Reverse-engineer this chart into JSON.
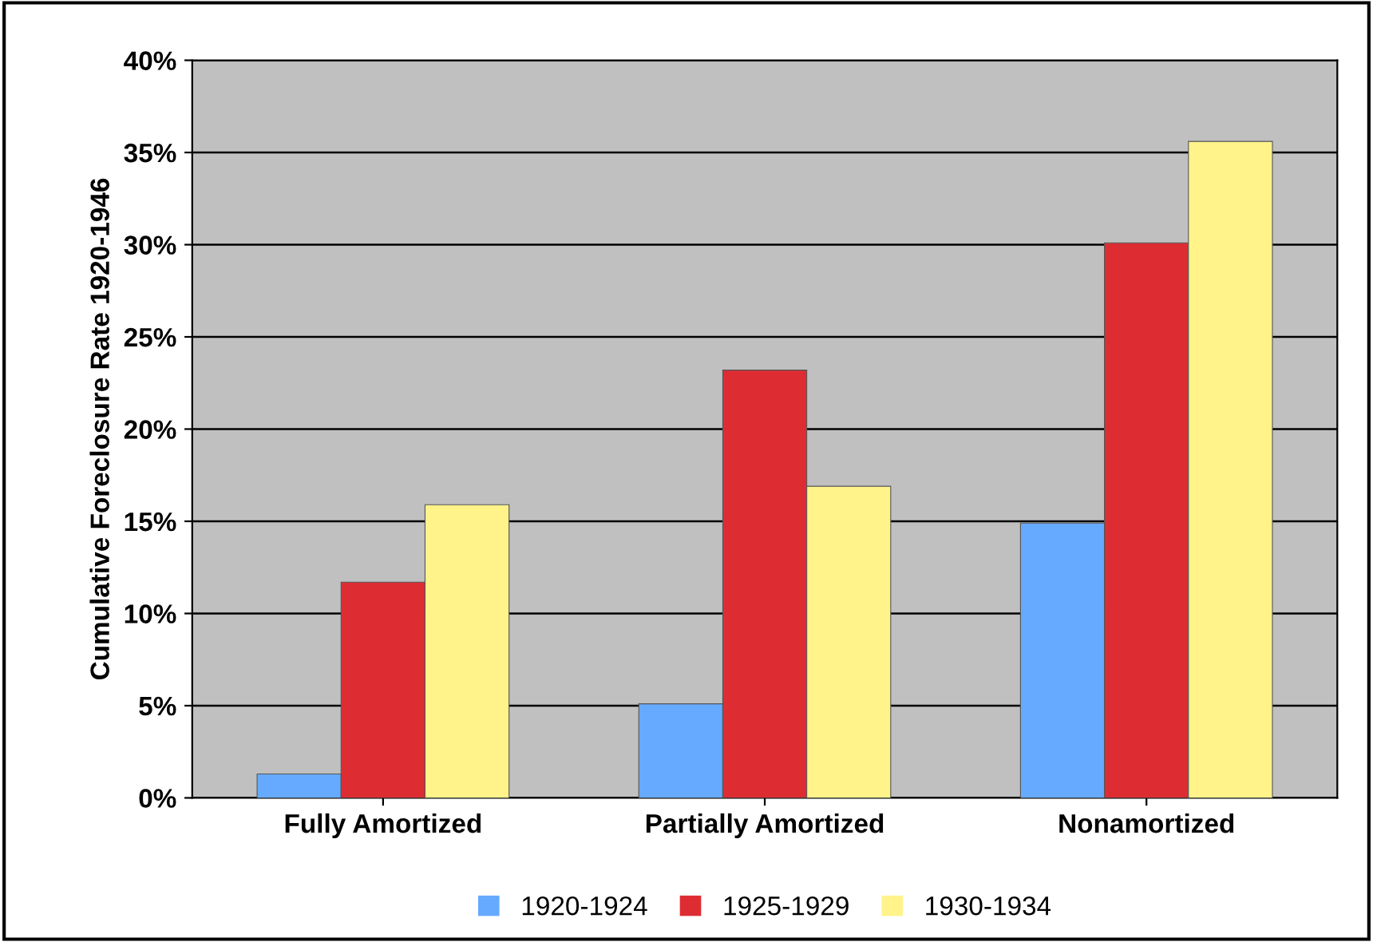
{
  "chart_data": {
    "type": "bar",
    "ylabel": "Cumulative Foreclosure Rate 1920-1946",
    "categories": [
      "Fully Amortized",
      "Partially Amortized",
      "Nonamortized"
    ],
    "series": [
      {
        "name": "1920-1924",
        "color": "#66aaff",
        "values": [
          1.3,
          5.1,
          14.9
        ]
      },
      {
        "name": "1925-1929",
        "color": "#dd2d33",
        "values": [
          11.7,
          23.2,
          30.1
        ]
      },
      {
        "name": "1930-1934",
        "color": "#fff38a",
        "values": [
          15.9,
          16.9,
          35.6
        ]
      }
    ],
    "ylim": [
      0,
      40
    ],
    "yticks": [
      {
        "value": 0,
        "label": "0%"
      },
      {
        "value": 5,
        "label": "5%"
      },
      {
        "value": 10,
        "label": "10%"
      },
      {
        "value": 15,
        "label": "15%"
      },
      {
        "value": 20,
        "label": "20%"
      },
      {
        "value": 25,
        "label": "25%"
      },
      {
        "value": 30,
        "label": "30%"
      },
      {
        "value": 35,
        "label": "35%"
      },
      {
        "value": 40,
        "label": "40%"
      }
    ],
    "grid": "y",
    "legend": "bottom"
  }
}
